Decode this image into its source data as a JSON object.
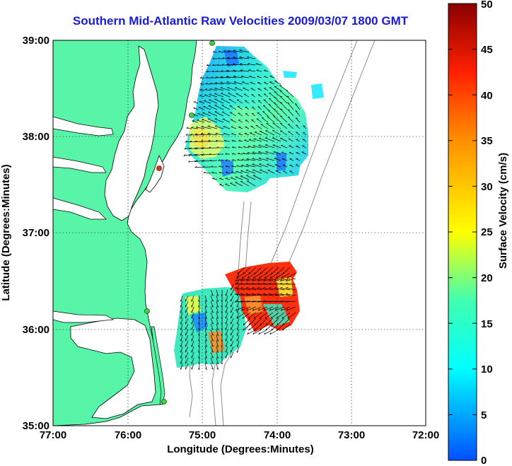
{
  "title": "Southern Mid-Atlantic Raw Velocities 2009/03/07 1800 GMT",
  "x_axis": {
    "label": "Longitude (Degrees:Minutes)",
    "ticks": [
      "77:00",
      "76:00",
      "75:00",
      "74:00",
      "73:00",
      "72:00"
    ]
  },
  "y_axis": {
    "label": "Latitude (Degrees:Minutes)",
    "ticks": [
      "39:00",
      "38:00",
      "37:00",
      "36:00",
      "35:00"
    ]
  },
  "colorbar": {
    "label": "Surface Velocity (cm/s)",
    "ticks": [
      "50",
      "45",
      "40",
      "35",
      "30",
      "25",
      "20",
      "15",
      "10",
      "5",
      "0"
    ],
    "range": [
      0,
      50
    ]
  },
  "colors": {
    "land": "#58f5a8",
    "title": "#1a1ad6",
    "station": "#3ad63a",
    "station_red": "#e03010"
  }
}
